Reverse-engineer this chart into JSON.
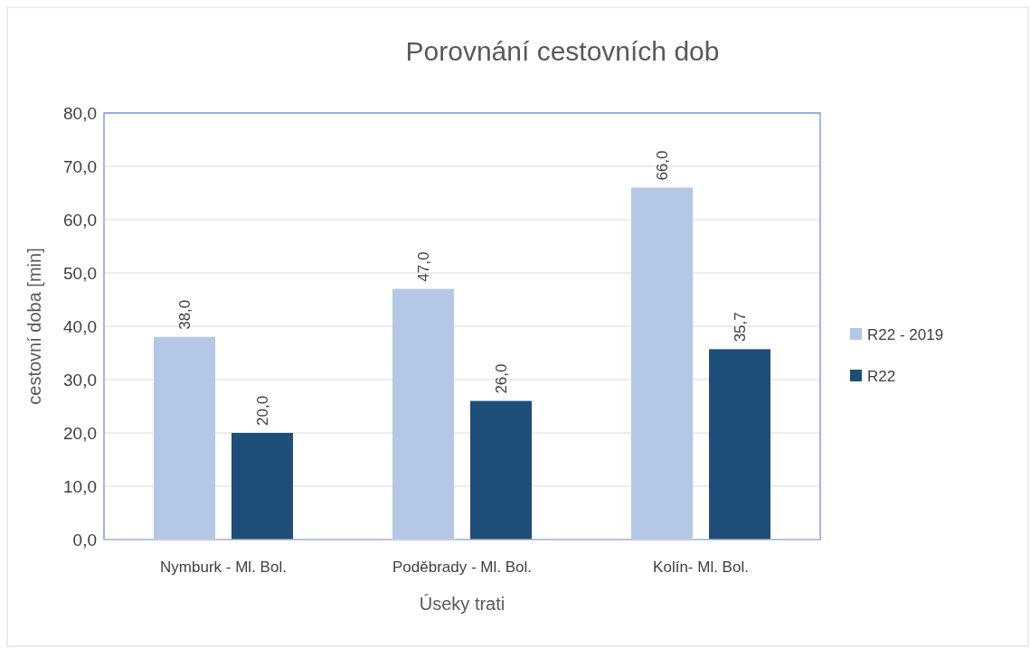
{
  "chart_data": {
    "type": "bar",
    "title": "Porovnání cestovních dob",
    "xlabel": "Úseky trati",
    "ylabel": "cestovní doba [min]",
    "categories": [
      "Nymburk - Ml. Bol.",
      "Poděbrady - Ml. Bol.",
      "Kolín- Ml. Bol."
    ],
    "series": [
      {
        "name": "R22 - 2019",
        "color": "#b4c7e7",
        "values": [
          38,
          47,
          66
        ],
        "value_labels": [
          "38,0",
          "47,0",
          "66,0"
        ]
      },
      {
        "name": "R22",
        "color": "#1f4e79",
        "values": [
          20,
          26,
          35.7
        ],
        "value_labels": [
          "20,0",
          "26,0",
          "35,7"
        ]
      }
    ],
    "ylim": [
      0,
      80
    ],
    "yticks": [
      {
        "value": 0,
        "label": "0,0"
      },
      {
        "value": 10,
        "label": "10,0"
      },
      {
        "value": 20,
        "label": "20,0"
      },
      {
        "value": 30,
        "label": "30,0"
      },
      {
        "value": 40,
        "label": "40,0"
      },
      {
        "value": 50,
        "label": "50,0"
      },
      {
        "value": 60,
        "label": "60,0"
      },
      {
        "value": 70,
        "label": "70,0"
      },
      {
        "value": 80,
        "label": "80,0"
      }
    ],
    "grid": "y",
    "legend": "right"
  }
}
